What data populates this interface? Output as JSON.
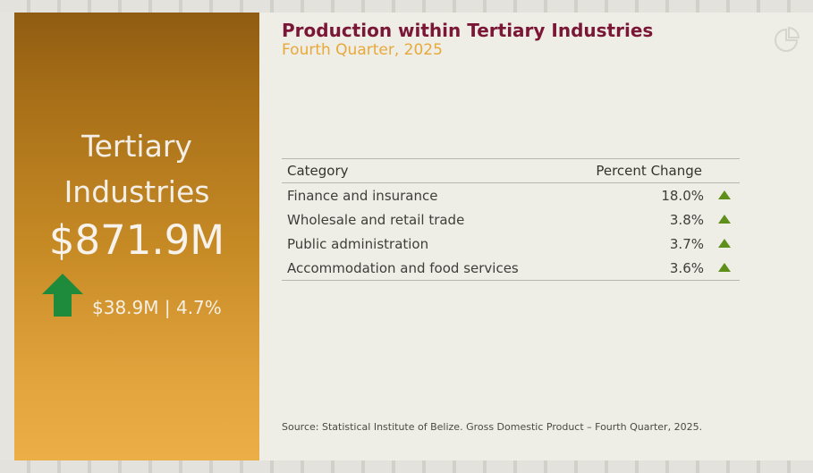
{
  "panel": {
    "title_line1": "Tertiary",
    "title_line2": "Industries",
    "amount": "$871.9M",
    "change": "$38.9M | 4.7%",
    "arrow_color": "#1e8a3c",
    "arrow_icon": "up-arrow-icon"
  },
  "content": {
    "title": "Production within Tertiary Industries",
    "subtitle": "Fourth Quarter, 2025",
    "corner_icon": "logo-icon"
  },
  "table": {
    "headers": {
      "category": "Category",
      "percent_change": "Percent Change"
    },
    "rows": [
      {
        "category": "Finance and insurance",
        "percent_change": "18.0%"
      },
      {
        "category": "Wholesale and retail trade",
        "percent_change": "3.8%"
      },
      {
        "category": "Public administration",
        "percent_change": "3.7%"
      },
      {
        "category": "Accommodation and food services",
        "percent_change": "3.6%"
      }
    ],
    "trend_icon": "triangle-up-icon",
    "trend_color": "#5f8f1b"
  },
  "source": "Source: Statistical Institute of Belize. Gross Domestic Product – Fourth Quarter, 2025.",
  "colors": {
    "accent_gold": "#c68a25",
    "title_maroon": "#7a1636",
    "subtitle_gold": "#e8a93a"
  }
}
